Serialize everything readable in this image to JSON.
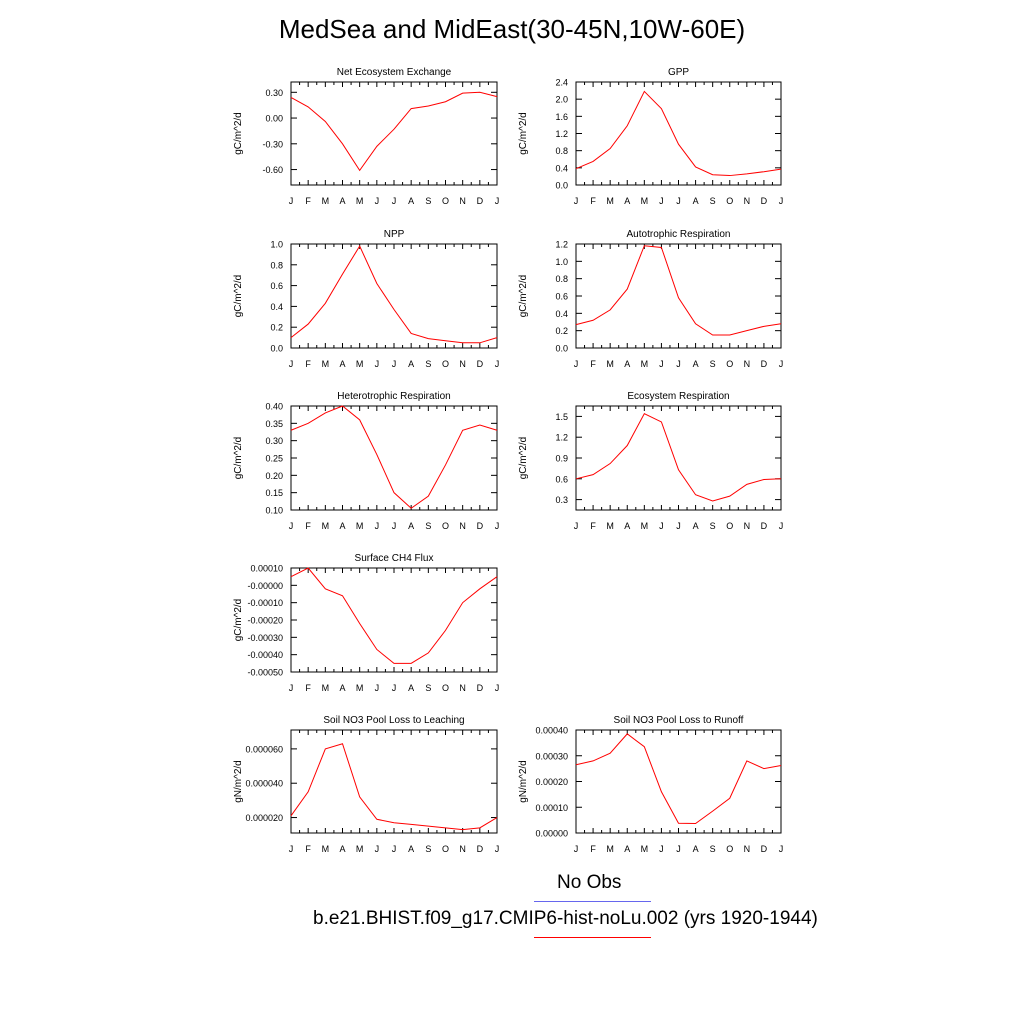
{
  "title": "MedSea and MidEast(30-45N,10W-60E)",
  "colors": {
    "model_line": "#ff0000",
    "obs_line": "#6666ee",
    "frame": "#000000"
  },
  "legend": {
    "obs_label": "No Obs",
    "model_label": "b.e21.BHIST.f09_g17.CMIP6-hist-noLu.002 (yrs 1920-1944)"
  },
  "chart_data": [
    {
      "type": "line",
      "title": "Net Ecosystem Exchange",
      "ylabel": "gC/m^2/d",
      "categories": [
        "J",
        "F",
        "M",
        "A",
        "M",
        "J",
        "J",
        "A",
        "S",
        "O",
        "N",
        "D",
        "J"
      ],
      "ylim": [
        -0.78,
        0.42
      ],
      "yticks": [
        0.3,
        0.0,
        -0.3,
        -0.6
      ],
      "ytick_labels": [
        "0.30",
        "0.00",
        "-0.30",
        "-0.60"
      ],
      "series": [
        {
          "values": [
            0.24,
            0.13,
            -0.04,
            -0.3,
            -0.61,
            -0.33,
            -0.13,
            0.11,
            0.14,
            0.19,
            0.29,
            0.3,
            0.25
          ]
        }
      ]
    },
    {
      "type": "line",
      "title": "GPP",
      "ylabel": "gC/m^2/d",
      "categories": [
        "J",
        "F",
        "M",
        "A",
        "M",
        "J",
        "J",
        "A",
        "S",
        "O",
        "N",
        "D",
        "J"
      ],
      "ylim": [
        0.0,
        2.4
      ],
      "yticks": [
        0.0,
        0.4,
        0.8,
        1.2,
        1.6,
        2.0,
        2.4
      ],
      "ytick_labels": [
        "0.0",
        "0.4",
        "0.8",
        "1.2",
        "1.6",
        "2.0",
        "2.4"
      ],
      "series": [
        {
          "values": [
            0.38,
            0.55,
            0.85,
            1.38,
            2.18,
            1.78,
            0.95,
            0.42,
            0.24,
            0.22,
            0.26,
            0.31,
            0.37
          ]
        }
      ]
    },
    {
      "type": "line",
      "title": "NPP",
      "ylabel": "gC/m^2/d",
      "categories": [
        "J",
        "F",
        "M",
        "A",
        "M",
        "J",
        "J",
        "A",
        "S",
        "O",
        "N",
        "D",
        "J"
      ],
      "ylim": [
        0.0,
        1.0
      ],
      "yticks": [
        0.0,
        0.2,
        0.4,
        0.6,
        0.8,
        1.0
      ],
      "ytick_labels": [
        "0.0",
        "0.2",
        "0.4",
        "0.6",
        "0.8",
        "1.0"
      ],
      "series": [
        {
          "values": [
            0.1,
            0.23,
            0.43,
            0.71,
            0.98,
            0.62,
            0.37,
            0.14,
            0.09,
            0.07,
            0.05,
            0.05,
            0.1
          ]
        }
      ]
    },
    {
      "type": "line",
      "title": "Autotrophic Respiration",
      "ylabel": "gC/m^2/d",
      "categories": [
        "J",
        "F",
        "M",
        "A",
        "M",
        "J",
        "J",
        "A",
        "S",
        "O",
        "N",
        "D",
        "J"
      ],
      "ylim": [
        0.0,
        1.2
      ],
      "yticks": [
        0.0,
        0.2,
        0.4,
        0.6,
        0.8,
        1.0,
        1.2
      ],
      "ytick_labels": [
        "0.0",
        "0.2",
        "0.4",
        "0.6",
        "0.8",
        "1.0",
        "1.2"
      ],
      "series": [
        {
          "values": [
            0.27,
            0.32,
            0.44,
            0.68,
            1.18,
            1.16,
            0.58,
            0.28,
            0.15,
            0.15,
            0.2,
            0.25,
            0.28
          ]
        }
      ]
    },
    {
      "type": "line",
      "title": "Heterotrophic Respiration",
      "ylabel": "gC/m^2/d",
      "categories": [
        "J",
        "F",
        "M",
        "A",
        "M",
        "J",
        "J",
        "A",
        "S",
        "O",
        "N",
        "D",
        "J"
      ],
      "ylim": [
        0.1,
        0.4
      ],
      "yticks": [
        0.1,
        0.15,
        0.2,
        0.25,
        0.3,
        0.35,
        0.4
      ],
      "ytick_labels": [
        "0.10",
        "0.15",
        "0.20",
        "0.25",
        "0.30",
        "0.35",
        "0.40"
      ],
      "series": [
        {
          "values": [
            0.33,
            0.35,
            0.38,
            0.4,
            0.36,
            0.26,
            0.15,
            0.105,
            0.14,
            0.23,
            0.33,
            0.345,
            0.33
          ]
        }
      ]
    },
    {
      "type": "line",
      "title": "Ecosystem Respiration",
      "ylabel": "gC/m^2/d",
      "categories": [
        "J",
        "F",
        "M",
        "A",
        "M",
        "J",
        "J",
        "A",
        "S",
        "O",
        "N",
        "D",
        "J"
      ],
      "ylim": [
        0.15,
        1.65
      ],
      "yticks": [
        0.3,
        0.6,
        0.9,
        1.2,
        1.5
      ],
      "ytick_labels": [
        "0.3",
        "0.6",
        "0.9",
        "1.2",
        "1.5"
      ],
      "series": [
        {
          "values": [
            0.6,
            0.66,
            0.82,
            1.08,
            1.54,
            1.42,
            0.73,
            0.37,
            0.28,
            0.35,
            0.52,
            0.59,
            0.6
          ]
        }
      ]
    },
    {
      "type": "line",
      "title": "Surface CH4 Flux",
      "ylabel": "gC/m^2/d",
      "categories": [
        "J",
        "F",
        "M",
        "A",
        "M",
        "J",
        "J",
        "A",
        "S",
        "O",
        "N",
        "D",
        "J"
      ],
      "ylim": [
        -0.0005,
        0.0001
      ],
      "yticks": [
        0.0001,
        0.0,
        -0.0001,
        -0.0002,
        -0.0003,
        -0.0004,
        -0.0005
      ],
      "ytick_labels": [
        "0.00010",
        "-0.00000",
        "-0.00010",
        "-0.00020",
        "-0.00030",
        "-0.00040",
        "-0.00050"
      ],
      "series": [
        {
          "values": [
            5e-05,
            0.0001,
            -2e-05,
            -6e-05,
            -0.00022,
            -0.00037,
            -0.00045,
            -0.00045,
            -0.00039,
            -0.00026,
            -0.0001,
            -2e-05,
            5e-05
          ]
        }
      ]
    },
    {
      "type": "line",
      "title": "Soil NO3 Pool Loss to Leaching",
      "ylabel": "gN/m^2/d",
      "categories": [
        "J",
        "F",
        "M",
        "A",
        "M",
        "J",
        "J",
        "A",
        "S",
        "O",
        "N",
        "D",
        "J"
      ],
      "ylim": [
        1.1e-05,
        7.1e-05
      ],
      "yticks": [
        2e-05,
        4e-05,
        6e-05
      ],
      "ytick_labels": [
        "0.000020",
        "0.000040",
        "0.000060"
      ],
      "series": [
        {
          "values": [
            2.1e-05,
            3.5e-05,
            6e-05,
            6.3e-05,
            3.2e-05,
            1.9e-05,
            1.7e-05,
            1.6e-05,
            1.5e-05,
            1.4e-05,
            1.3e-05,
            1.4e-05,
            2e-05
          ]
        }
      ]
    },
    {
      "type": "line",
      "title": "Soil NO3 Pool Loss to Runoff",
      "ylabel": "gN/m^2/d",
      "categories": [
        "J",
        "F",
        "M",
        "A",
        "M",
        "J",
        "J",
        "A",
        "S",
        "O",
        "N",
        "D",
        "J"
      ],
      "ylim": [
        0.0,
        0.0004
      ],
      "yticks": [
        0.0,
        0.0001,
        0.0002,
        0.0003,
        0.0004
      ],
      "ytick_labels": [
        "0.00000",
        "0.00010",
        "0.00020",
        "0.00030",
        "0.00040"
      ],
      "series": [
        {
          "values": [
            0.000265,
            0.00028,
            0.00031,
            0.000385,
            0.000335,
            0.00016,
            3.8e-05,
            3.7e-05,
            8.5e-05,
            0.000135,
            0.00028,
            0.00025,
            0.000262
          ]
        }
      ]
    }
  ]
}
